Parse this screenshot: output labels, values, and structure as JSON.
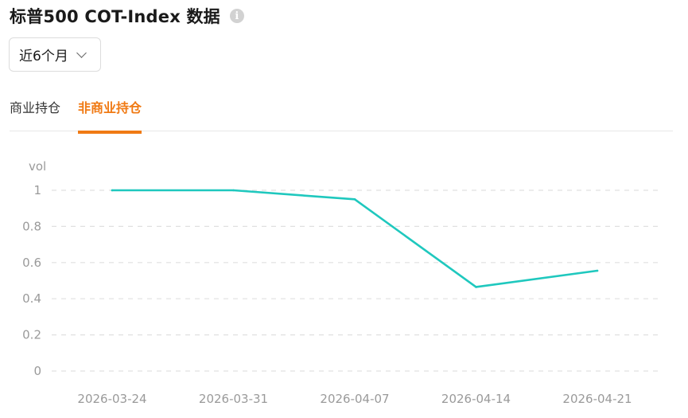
{
  "header": {
    "title": "标普500 COT-Index 数据",
    "info_icon": "info-icon"
  },
  "range_select": {
    "value": "近6个月"
  },
  "tabs": [
    {
      "label": "商业持仓",
      "active": false
    },
    {
      "label": "非商业持仓",
      "active": true
    }
  ],
  "colors": {
    "accent": "#f07a14",
    "line": "#1fc8be",
    "grid": "#e0e0e0",
    "tick": "#9a9a9a"
  },
  "chart_data": {
    "type": "line",
    "ylabel": "vol",
    "x": [
      "2026-03-24",
      "2026-03-31",
      "2026-04-07",
      "2026-04-14",
      "2026-04-21"
    ],
    "y_ticks": [
      "0",
      "0.2",
      "0.4",
      "0.6",
      "0.8",
      "1"
    ],
    "ylim": [
      0,
      1
    ],
    "grid": true,
    "series": [
      {
        "values": [
          1.0,
          1.0,
          0.95,
          0.465,
          0.555
        ]
      }
    ]
  }
}
